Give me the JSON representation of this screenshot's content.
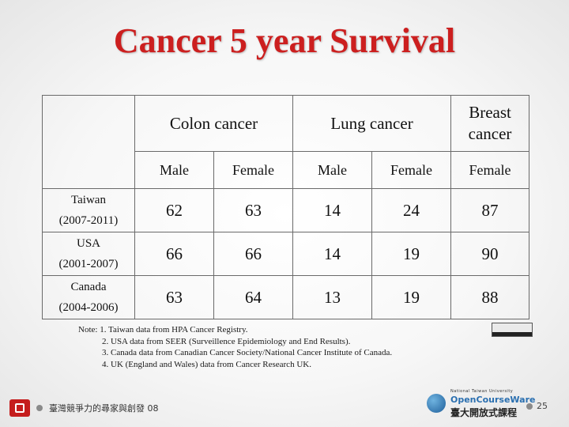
{
  "title": "Cancer 5 year Survival",
  "table": {
    "groups": [
      "Colon cancer",
      "Lung cancer",
      "Breast cancer"
    ],
    "subheaders": [
      "Male",
      "Female",
      "Male",
      "Female",
      "Female"
    ],
    "rows": [
      {
        "label": "Taiwan",
        "years": "(2007-2011)",
        "values": [
          "62",
          "63",
          "14",
          "24",
          "87"
        ]
      },
      {
        "label": "USA",
        "years": "(2001-2007)",
        "values": [
          "66",
          "66",
          "14",
          "19",
          "90"
        ]
      },
      {
        "label": "Canada",
        "years": "(2004-2006)",
        "values": [
          "63",
          "64",
          "13",
          "19",
          "88"
        ]
      }
    ]
  },
  "notes": [
    "Note: 1. Taiwan data from HPA Cancer Registry.",
    "2. USA data from SEER (Surveillence Epidemiology and End Results).",
    "3. Canada data from Canadian Cancer Society/National Cancer Institute of Canada.",
    "4. UK (England and Wales) data from Cancer Research UK."
  ],
  "footer": {
    "left_text": "臺灣競爭力的尋家與創發 08",
    "ocw_line1": "National Taiwan University",
    "ocw_line2": "OpenCourseWare",
    "ocw_line3": "臺大開放式課程",
    "page_number": "25"
  },
  "colors": {
    "title": "#cc1f1f",
    "table_border": "#6a6a6a"
  }
}
